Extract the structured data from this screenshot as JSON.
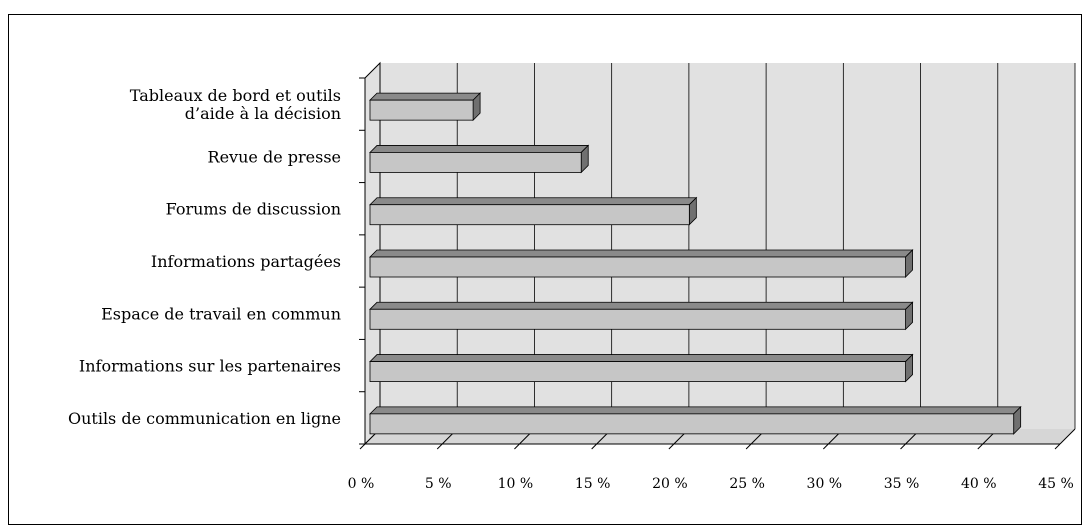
{
  "chart_data": {
    "type": "bar",
    "orientation": "horizontal",
    "style": "3d",
    "categories": [
      [
        "Tableaux de bord et outils",
        "d’aide à la décision"
      ],
      [
        "Revue de presse"
      ],
      [
        "Forums de discussion"
      ],
      [
        "Informations partagées"
      ],
      [
        "Espace de travail en commun"
      ],
      [
        "Informations sur les partenaires"
      ],
      [
        "Outils de communication en ligne"
      ]
    ],
    "values": [
      7,
      14,
      21,
      35,
      35,
      35,
      42
    ],
    "xlim": [
      0,
      45
    ],
    "tick_labels": [
      "0 %",
      "5 %",
      "10 %",
      "15 %",
      "20 %",
      "25 %",
      "30 %",
      "35 %",
      "40 %",
      "45 %"
    ],
    "grid": true,
    "legend": "none",
    "colors": {
      "wall": "#e1e1e1",
      "floor": "#d6d6d6",
      "bar_front": "#c6c6c6",
      "bar_top": "#8a8a8a",
      "bar_side": "#707070",
      "grid": "#000000"
    }
  }
}
